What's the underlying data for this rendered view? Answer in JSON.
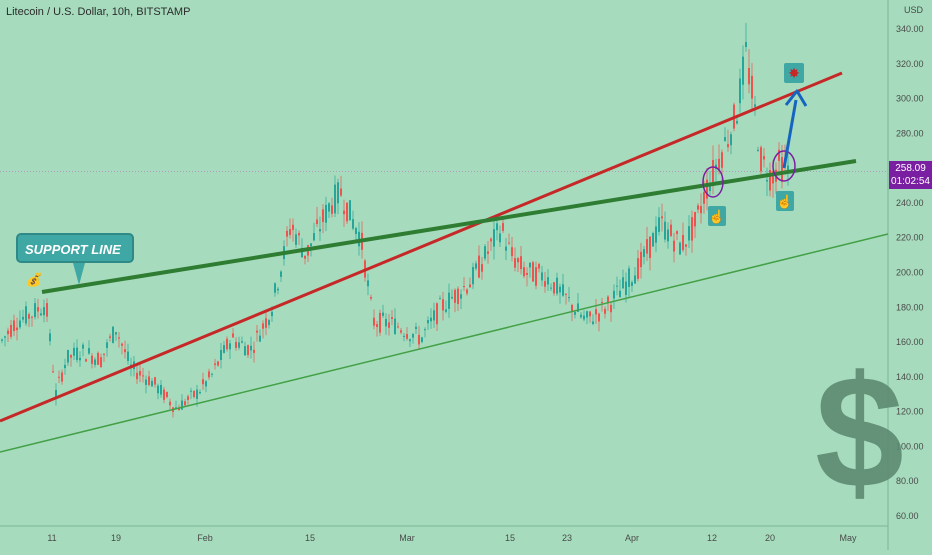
{
  "chart_data": {
    "type": "candlestick",
    "title": "Litecoin / U.S. Dollar, 10h, BITSTAMP",
    "ylabel": "USD",
    "ylim": [
      50,
      350
    ],
    "y_ticks": [
      60,
      80,
      100,
      120,
      140,
      160,
      180,
      200,
      220,
      240,
      260,
      280,
      300,
      320,
      340
    ],
    "y_tick_labels": [
      "60.00",
      "80.00",
      "100.00",
      "120.00",
      "140.00",
      "160.00",
      "180.00",
      "200.00",
      "220.00",
      "240.00",
      "260.00",
      "280.00",
      "300.00",
      "320.00",
      "340.00"
    ],
    "x_tick_labels": [
      "11",
      "19",
      "Feb",
      "15",
      "Mar",
      "15",
      "23",
      "Apr",
      "12",
      "20",
      "May"
    ],
    "grid": false,
    "price_path": [
      [
        0,
        160
      ],
      [
        15,
        172
      ],
      [
        30,
        176
      ],
      [
        45,
        182
      ],
      [
        55,
        130
      ],
      [
        65,
        150
      ],
      [
        80,
        155
      ],
      [
        100,
        150
      ],
      [
        115,
        168
      ],
      [
        130,
        145
      ],
      [
        150,
        138
      ],
      [
        175,
        122
      ],
      [
        195,
        130
      ],
      [
        210,
        140
      ],
      [
        230,
        162
      ],
      [
        250,
        156
      ],
      [
        270,
        178
      ],
      [
        290,
        228
      ],
      [
        305,
        210
      ],
      [
        320,
        228
      ],
      [
        330,
        240
      ],
      [
        340,
        246
      ],
      [
        350,
        232
      ],
      [
        360,
        220
      ],
      [
        372,
        172
      ],
      [
        395,
        170
      ],
      [
        420,
        162
      ],
      [
        440,
        180
      ],
      [
        470,
        195
      ],
      [
        490,
        215
      ],
      [
        500,
        226
      ],
      [
        510,
        210
      ],
      [
        525,
        200
      ],
      [
        545,
        198
      ],
      [
        565,
        185
      ],
      [
        585,
        172
      ],
      [
        605,
        180
      ],
      [
        620,
        190
      ],
      [
        640,
        205
      ],
      [
        660,
        228
      ],
      [
        680,
        215
      ],
      [
        695,
        228
      ],
      [
        705,
        248
      ],
      [
        720,
        268
      ],
      [
        735,
        290
      ],
      [
        745,
        325
      ],
      [
        752,
        300
      ],
      [
        760,
        265
      ],
      [
        770,
        255
      ],
      [
        778,
        262
      ],
      [
        790,
        258
      ]
    ],
    "last_price": 258.09
  },
  "annotations": {
    "callout_label": "SUPPORT LINE",
    "current_price": "258.09",
    "countdown": "01:02:54",
    "dollar_glyph": "$"
  },
  "colors": {
    "background": "#a6dcbd",
    "candle_up": "#26a69a",
    "candle_down": "#ef5350",
    "red_trendline": "#c62828",
    "green_trendline": "#2e7d32",
    "thin_trendline": "#43a047",
    "projection_arrow": "#1565c0",
    "highlight_circle": "#7b1fa2"
  }
}
